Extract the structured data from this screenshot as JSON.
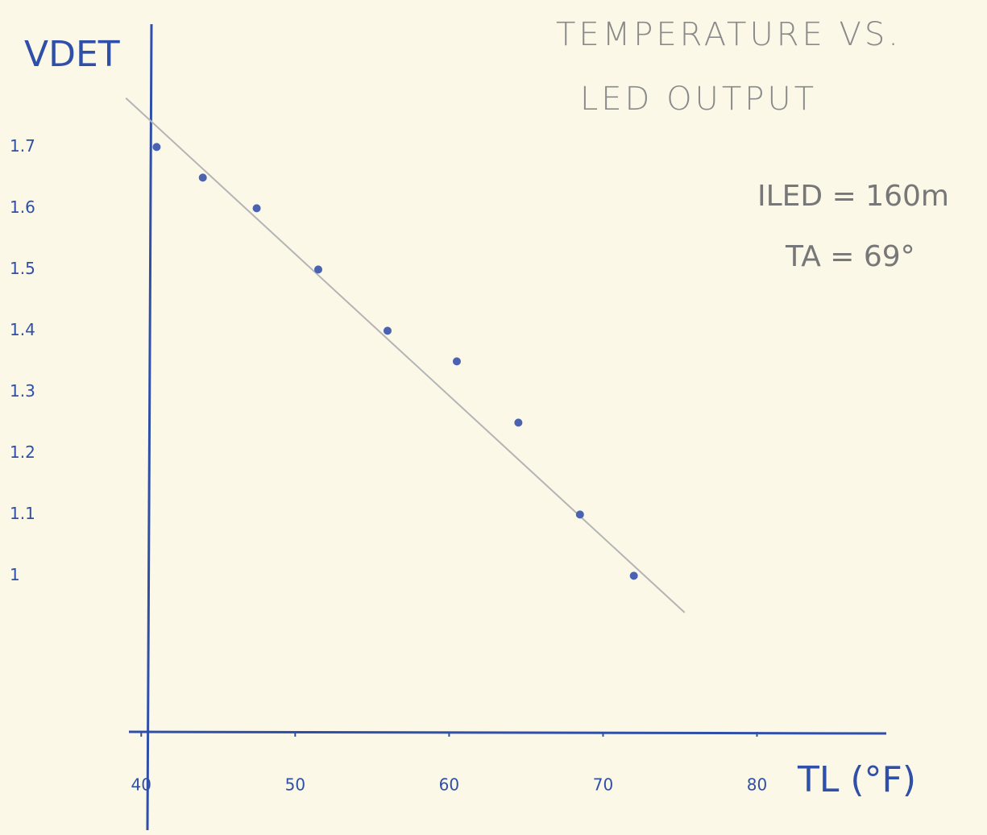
{
  "chart_data": {
    "type": "scatter",
    "title": "TEMPERATURE VS.",
    "subtitle": "LED OUTPUT",
    "xlabel": "TL (°F)",
    "ylabel": "VDET",
    "annotations": [
      "ILED = 160m",
      "TA = 69°"
    ],
    "x": [
      41,
      44,
      47.5,
      51.5,
      56,
      60.5,
      64.5,
      68.5,
      72
    ],
    "series": [
      {
        "color": "#4a62b0",
        "values": [
          1.7,
          1.65,
          1.6,
          1.5,
          1.4,
          1.35,
          1.25,
          1.1,
          1.0
        ]
      }
    ],
    "trendline": {
      "color": "#b4b4b4",
      "x": [
        39,
        75.3
      ],
      "y": [
        1.78,
        0.94
      ]
    },
    "xlim": [
      39.2,
      88.4
    ],
    "xticks": [
      40,
      50,
      60,
      70,
      80
    ],
    "ylim": [
      0.74,
      1.94
    ],
    "yticks": [
      1.7,
      1.6,
      1.5,
      1.4,
      1.3,
      1.2,
      1.1,
      1
    ],
    "grid": false
  }
}
